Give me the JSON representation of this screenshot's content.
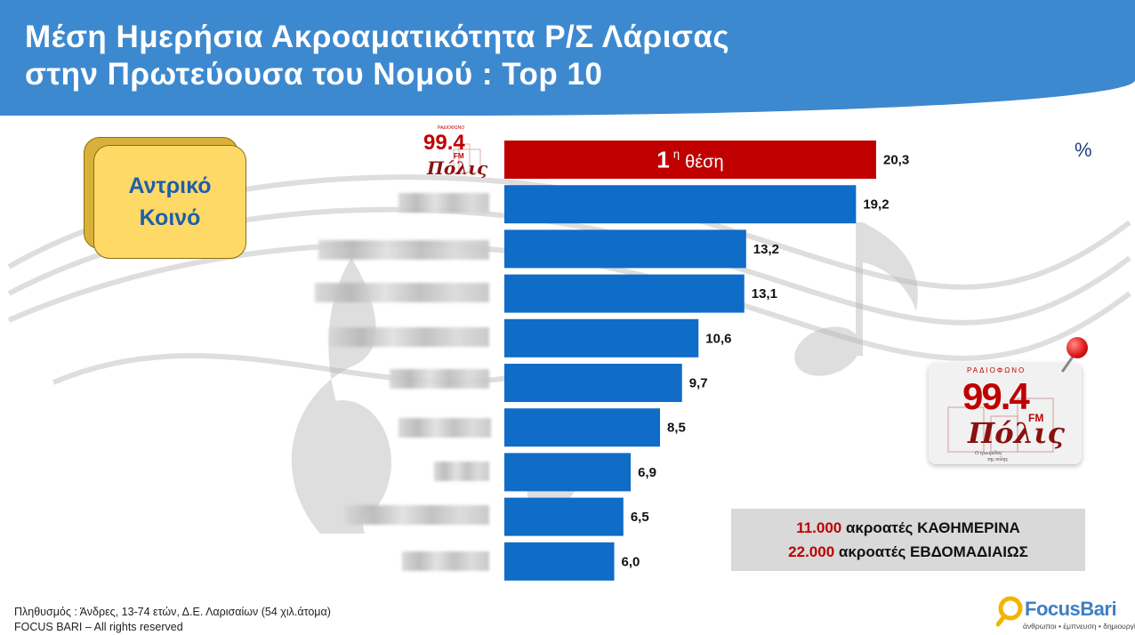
{
  "header": {
    "title_line1": "Μέση Ημερήσια Ακροαματικότητα Ρ/Σ Λάρισας",
    "title_line2": "στην Πρωτεύουσα του Νομού : Top 10"
  },
  "badge": {
    "line1": "Αντρικό",
    "line2": "Κοινό"
  },
  "unit": "%",
  "chart_data": {
    "type": "bar",
    "orientation": "horizontal",
    "title": "Μέση Ημερήσια Ακροαματικότητα Ρ/Σ Λάρισας στην Πρωτεύουσα του Νομού : Top 10",
    "unit": "%",
    "categories": [
      "99.4 Πόλις FM",
      "",
      "",
      "",
      "",
      "",
      "",
      "",
      "",
      ""
    ],
    "values": [
      20.3,
      19.2,
      13.2,
      13.1,
      10.6,
      9.7,
      8.5,
      6.9,
      6.5,
      6.0
    ],
    "value_labels": [
      "20,3",
      "19,2",
      "13,2",
      "13,1",
      "10,6",
      "9,7",
      "8,5",
      "6,9",
      "6,5",
      "6,0"
    ],
    "highlight_index": 0,
    "highlight_text": {
      "number": "1",
      "sup": "η",
      "word": "θέση"
    },
    "colors": {
      "highlight": "#c00000",
      "bars": "#0f6cc7"
    },
    "xlim": [
      0,
      20.3
    ],
    "grid": false,
    "legend": "none"
  },
  "logo": {
    "top_text": "ΡΑΔΙΟΦΩΝΟ",
    "frequency": "99.4",
    "fm": "FM",
    "name": "Πόλις",
    "slogan_1": "Ο ερασμέλος",
    "slogan_2": "της πόλης"
  },
  "pin": {
    "color": "#e01b1b",
    "icon": "map-pin-icon"
  },
  "listeners": {
    "daily_number": "11.000",
    "daily_text": "ακροατές ΚΑΘΗΜΕΡΙΝΑ",
    "weekly_number": "22.000",
    "weekly_text": "ακροατές ΕΒΔΟΜΑΔΙΑΙΩΣ"
  },
  "footer": {
    "population": "Πληθυσμός : Άνδρες, 13-74 ετών, Δ.Ε. Λαρισαίων (54  χιλ.άτομα)",
    "rights": "FOCUS BARI – All rights reserved"
  },
  "brand": {
    "name": "FocusBari",
    "tagline": "άνθρωποι • έμπνευση • δημιουργία",
    "icon": "magnifier-icon"
  }
}
